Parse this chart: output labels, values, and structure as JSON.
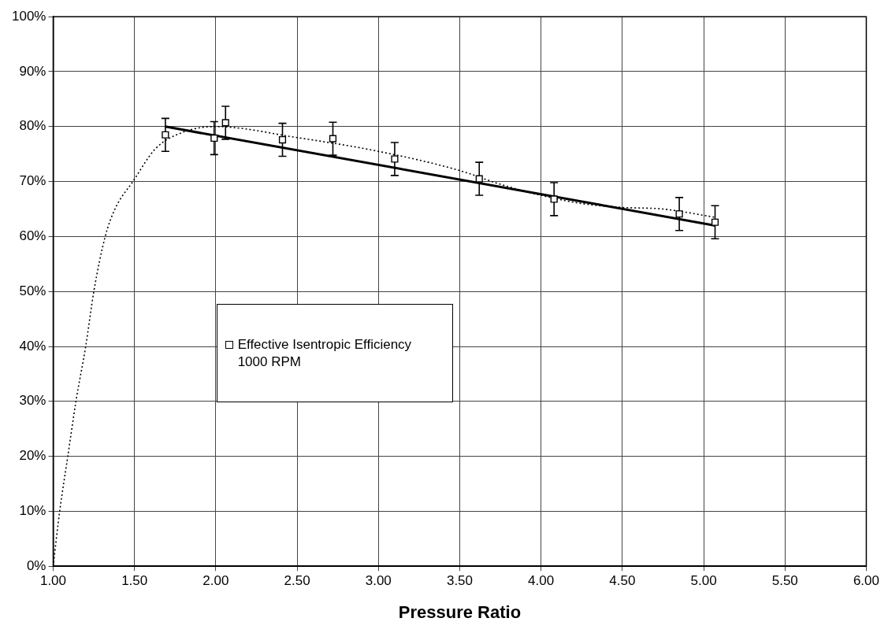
{
  "chart_data": {
    "type": "scatter",
    "xlabel": "Pressure Ratio",
    "xlim": [
      1,
      6
    ],
    "xticks": [
      {
        "value": 1,
        "label": "1.00"
      },
      {
        "value": 1.5,
        "label": "1.50"
      },
      {
        "value": 2,
        "label": "2.00"
      },
      {
        "value": 2.5,
        "label": "2.50"
      },
      {
        "value": 3,
        "label": "3.00"
      },
      {
        "value": 3.5,
        "label": "3.50"
      },
      {
        "value": 4,
        "label": "4.00"
      },
      {
        "value": 4.5,
        "label": "4.50"
      },
      {
        "value": 5,
        "label": "5.00"
      },
      {
        "value": 5.5,
        "label": "5.50"
      },
      {
        "value": 6,
        "label": "6.00"
      }
    ],
    "ylim": [
      0,
      100
    ],
    "yticks": [
      {
        "value": 0,
        "label": "0%"
      },
      {
        "value": 10,
        "label": "10%"
      },
      {
        "value": 20,
        "label": "20%"
      },
      {
        "value": 30,
        "label": "30%"
      },
      {
        "value": 40,
        "label": "40%"
      },
      {
        "value": 50,
        "label": "50%"
      },
      {
        "value": 60,
        "label": "60%"
      },
      {
        "value": 70,
        "label": "70%"
      },
      {
        "value": 80,
        "label": "80%"
      },
      {
        "value": 90,
        "label": "90%"
      },
      {
        "value": 100,
        "label": "100%"
      }
    ],
    "grid": true,
    "legend": "center",
    "series": [
      {
        "name": "Effective Isentropic Efficiency 1000 RPM",
        "marker": "square",
        "color": "#000000",
        "x": [
          1.69,
          1.99,
          2.06,
          2.41,
          2.72,
          3.1,
          3.62,
          4.08,
          4.85,
          5.07
        ],
        "values": [
          78.5,
          77.9,
          80.7,
          77.6,
          77.8,
          74.1,
          70.5,
          66.8,
          64.1,
          62.6
        ],
        "errors": [
          3,
          3,
          3,
          3,
          3,
          3,
          3,
          3,
          3,
          3
        ]
      },
      {
        "type": "line",
        "color": "#000000",
        "line_style": "solid",
        "x": [
          1.69,
          5.07
        ],
        "values": [
          80,
          62
        ]
      },
      {
        "type": "line",
        "color": "#000000",
        "line_style": "dotted",
        "x": [
          1.0,
          1.04,
          1.09,
          1.14,
          1.2,
          1.25,
          1.32,
          1.38,
          1.49,
          1.63,
          1.8,
          2.0,
          2.5,
          3.0,
          3.5,
          3.75,
          4.0,
          4.25,
          4.5,
          4.75,
          5.07
        ],
        "values": [
          0,
          10,
          20,
          30,
          40,
          50,
          60,
          65,
          70,
          76,
          79,
          80,
          78,
          75.5,
          72,
          69.5,
          67.5,
          66,
          65.3,
          65.0,
          63.5
        ]
      }
    ]
  }
}
